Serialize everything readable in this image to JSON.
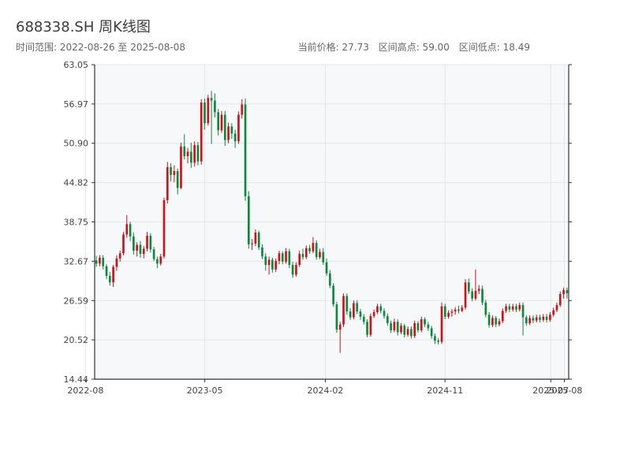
{
  "header": {
    "title": "688338.SH 周K线图",
    "range_text": "时间范围: 2022-08-26 至 2025-08-08",
    "current_price": "当前价格: 27.73",
    "range_high": "区间高点: 59.00",
    "range_low": "区间低点: 18.49"
  },
  "colors": {
    "up": "#d0111b",
    "down": "#0b8a3e",
    "plot_bg": "#f7f8fa",
    "grid": "#e3e6ea",
    "axis": "#333333",
    "tick_text": "#444444"
  },
  "chart_data": {
    "type": "candlestick",
    "ylim": [
      14.44,
      63.05
    ],
    "y_ticks": [
      "63.05",
      "56.97",
      "50.90",
      "44.82",
      "38.75",
      "32.67",
      "26.59",
      "20.52",
      "14.44"
    ],
    "x_start": "2022-08-22",
    "x_end": "2025-08-11",
    "x_ticks": [
      {
        "label": "2022-08",
        "date": "2022-08-01"
      },
      {
        "label": "2023-05",
        "date": "2023-05-01"
      },
      {
        "label": "2024-02",
        "date": "2024-02-01"
      },
      {
        "label": "2024-11",
        "date": "2024-11-01"
      },
      {
        "label": "2025-07",
        "date": "2025-07-01"
      },
      {
        "label": "2025-08",
        "date": "2025-08-01"
      }
    ],
    "grid": true,
    "candles_ohlc": [
      [
        32.8,
        33.5,
        31.8,
        32.3
      ],
      [
        32.3,
        33.6,
        31.9,
        33.2
      ],
      [
        33.2,
        33.6,
        31.4,
        31.9
      ],
      [
        31.9,
        32.2,
        29.9,
        30.4
      ],
      [
        30.4,
        31.0,
        28.9,
        29.4
      ],
      [
        29.4,
        32.1,
        28.7,
        31.8
      ],
      [
        31.8,
        33.6,
        31.2,
        33.1
      ],
      [
        33.1,
        34.3,
        32.6,
        33.9
      ],
      [
        33.9,
        37.2,
        33.6,
        36.8
      ],
      [
        36.8,
        39.8,
        36.3,
        38.4
      ],
      [
        38.4,
        38.8,
        35.8,
        36.5
      ],
      [
        36.5,
        37.1,
        33.7,
        34.3
      ],
      [
        34.3,
        35.6,
        33.4,
        35.2
      ],
      [
        35.2,
        35.8,
        33.2,
        33.8
      ],
      [
        33.8,
        35.0,
        33.1,
        34.6
      ],
      [
        34.6,
        37.2,
        34.2,
        36.6
      ],
      [
        36.6,
        37.0,
        34.0,
        34.5
      ],
      [
        34.5,
        34.9,
        32.7,
        33.0
      ],
      [
        33.0,
        33.4,
        31.6,
        32.3
      ],
      [
        32.3,
        33.8,
        32.0,
        33.4
      ],
      [
        33.4,
        42.5,
        33.1,
        42.1
      ],
      [
        42.1,
        48.0,
        41.6,
        47.2
      ],
      [
        47.2,
        47.8,
        45.0,
        46.0
      ],
      [
        46.0,
        47.5,
        44.9,
        46.6
      ],
      [
        46.6,
        47.0,
        43.0,
        44.0
      ],
      [
        44.0,
        51.0,
        43.8,
        50.4
      ],
      [
        50.4,
        52.3,
        48.4,
        48.9
      ],
      [
        48.9,
        50.2,
        47.8,
        49.6
      ],
      [
        49.6,
        51.0,
        47.1,
        47.9
      ],
      [
        47.9,
        51.2,
        47.3,
        50.6
      ],
      [
        50.6,
        51.1,
        47.5,
        48.1
      ],
      [
        48.1,
        57.7,
        47.6,
        57.2
      ],
      [
        57.2,
        57.8,
        53.0,
        54.0
      ],
      [
        54.0,
        58.4,
        53.6,
        57.9
      ],
      [
        57.9,
        59.0,
        50.8,
        57.5
      ],
      [
        57.5,
        58.6,
        54.9,
        55.7
      ],
      [
        55.7,
        56.2,
        52.1,
        52.9
      ],
      [
        52.9,
        55.9,
        52.5,
        55.3
      ],
      [
        55.3,
        55.9,
        50.5,
        51.4
      ],
      [
        51.4,
        54.1,
        50.9,
        53.5
      ],
      [
        53.5,
        54.0,
        51.6,
        52.4
      ],
      [
        52.4,
        53.0,
        50.2,
        51.2
      ],
      [
        51.2,
        55.8,
        50.8,
        55.3
      ],
      [
        55.3,
        57.7,
        54.7,
        56.9
      ],
      [
        56.9,
        57.8,
        42.0,
        42.7
      ],
      [
        42.7,
        43.5,
        34.6,
        35.3
      ],
      [
        35.3,
        36.1,
        34.4,
        35.4
      ],
      [
        35.4,
        37.6,
        35.0,
        37.1
      ],
      [
        37.1,
        37.4,
        34.4,
        34.8
      ],
      [
        34.8,
        35.3,
        33.0,
        33.4
      ],
      [
        33.4,
        33.9,
        31.2,
        32.1
      ],
      [
        32.1,
        33.4,
        30.6,
        32.9
      ],
      [
        32.9,
        33.2,
        30.9,
        31.4
      ],
      [
        31.4,
        33.1,
        31.0,
        32.7
      ],
      [
        32.7,
        34.3,
        32.2,
        33.9
      ],
      [
        33.9,
        34.2,
        32.2,
        32.6
      ],
      [
        32.6,
        34.7,
        32.3,
        34.2
      ],
      [
        34.2,
        34.6,
        31.6,
        32.1
      ],
      [
        32.1,
        32.6,
        30.1,
        30.6
      ],
      [
        30.6,
        32.5,
        30.3,
        32.1
      ],
      [
        32.1,
        34.3,
        31.8,
        33.8
      ],
      [
        33.8,
        34.6,
        32.9,
        33.3
      ],
      [
        33.3,
        35.1,
        33.0,
        34.7
      ],
      [
        34.7,
        35.2,
        33.8,
        34.2
      ],
      [
        34.2,
        36.4,
        33.9,
        35.5
      ],
      [
        35.5,
        35.9,
        32.9,
        33.3
      ],
      [
        33.3,
        34.6,
        33.0,
        34.1
      ],
      [
        34.1,
        34.7,
        32.1,
        32.5
      ],
      [
        32.5,
        33.1,
        30.4,
        30.8
      ],
      [
        30.8,
        31.3,
        28.5,
        28.9
      ],
      [
        28.9,
        29.3,
        25.6,
        26.0
      ],
      [
        26.0,
        26.4,
        21.6,
        22.1
      ],
      [
        22.1,
        23.3,
        18.5,
        22.9
      ],
      [
        22.9,
        27.7,
        22.5,
        27.3
      ],
      [
        27.3,
        27.7,
        24.4,
        24.9
      ],
      [
        24.9,
        25.4,
        23.6,
        24.0
      ],
      [
        24.0,
        26.6,
        23.7,
        26.2
      ],
      [
        26.2,
        26.6,
        24.5,
        24.9
      ],
      [
        24.9,
        25.3,
        23.6,
        24.1
      ],
      [
        24.1,
        24.5,
        22.9,
        23.3
      ],
      [
        23.3,
        23.7,
        20.9,
        21.3
      ],
      [
        21.3,
        24.6,
        21.0,
        24.2
      ],
      [
        24.2,
        25.2,
        23.9,
        24.8
      ],
      [
        24.8,
        26.1,
        24.5,
        25.7
      ],
      [
        25.7,
        26.1,
        24.6,
        25.0
      ],
      [
        25.0,
        25.4,
        23.8,
        24.2
      ],
      [
        24.2,
        24.6,
        22.7,
        23.1
      ],
      [
        23.1,
        23.5,
        21.6,
        22.0
      ],
      [
        22.0,
        23.8,
        21.7,
        23.3
      ],
      [
        23.3,
        23.7,
        21.2,
        21.7
      ],
      [
        21.7,
        23.1,
        21.4,
        22.7
      ],
      [
        22.7,
        23.0,
        20.9,
        21.3
      ],
      [
        21.3,
        22.6,
        21.0,
        22.2
      ],
      [
        22.2,
        22.6,
        20.7,
        21.1
      ],
      [
        21.1,
        23.5,
        20.8,
        23.1
      ],
      [
        23.1,
        23.4,
        21.6,
        22.0
      ],
      [
        22.0,
        24.1,
        21.7,
        23.7
      ],
      [
        23.7,
        24.0,
        22.5,
        22.9
      ],
      [
        22.9,
        23.3,
        21.9,
        22.3
      ],
      [
        22.3,
        22.7,
        20.7,
        21.1
      ],
      [
        21.1,
        21.5,
        19.9,
        20.4
      ],
      [
        20.4,
        20.8,
        19.8,
        20.2
      ],
      [
        20.2,
        26.3,
        19.9,
        25.7
      ],
      [
        25.7,
        26.1,
        23.7,
        24.1
      ],
      [
        24.1,
        25.1,
        23.8,
        24.7
      ],
      [
        24.7,
        25.3,
        24.1,
        24.9
      ],
      [
        24.9,
        25.6,
        24.4,
        25.2
      ],
      [
        25.2,
        25.8,
        24.6,
        25.0
      ],
      [
        25.0,
        25.9,
        24.8,
        25.5
      ],
      [
        25.5,
        29.9,
        25.2,
        29.4
      ],
      [
        29.4,
        30.0,
        27.6,
        28.0
      ],
      [
        28.0,
        28.5,
        26.5,
        26.9
      ],
      [
        26.9,
        31.4,
        26.6,
        28.1
      ],
      [
        28.1,
        29.0,
        27.6,
        28.4
      ],
      [
        28.4,
        28.9,
        25.9,
        26.3
      ],
      [
        26.3,
        26.7,
        24.0,
        24.4
      ],
      [
        24.4,
        24.8,
        22.4,
        22.8
      ],
      [
        22.8,
        24.3,
        22.5,
        23.9
      ],
      [
        23.9,
        24.2,
        22.5,
        22.9
      ],
      [
        22.9,
        23.8,
        22.6,
        23.4
      ],
      [
        23.4,
        25.4,
        23.1,
        25.0
      ],
      [
        25.0,
        26.1,
        24.7,
        25.7
      ],
      [
        25.7,
        26.1,
        24.8,
        25.2
      ],
      [
        25.2,
        26.1,
        24.9,
        25.7
      ],
      [
        25.7,
        26.1,
        24.8,
        25.2
      ],
      [
        25.2,
        26.3,
        24.9,
        25.9
      ],
      [
        25.9,
        26.3,
        21.2,
        24.0
      ],
      [
        24.0,
        24.3,
        22.7,
        23.1
      ],
      [
        23.1,
        24.3,
        22.8,
        23.9
      ],
      [
        23.9,
        24.3,
        23.1,
        23.5
      ],
      [
        23.5,
        24.4,
        23.2,
        24.0
      ],
      [
        24.0,
        24.4,
        23.2,
        23.6
      ],
      [
        23.6,
        24.5,
        23.3,
        24.1
      ],
      [
        24.1,
        24.5,
        23.2,
        23.6
      ],
      [
        23.6,
        24.8,
        23.3,
        24.4
      ],
      [
        24.4,
        25.5,
        24.1,
        25.1
      ],
      [
        25.1,
        26.3,
        24.8,
        25.9
      ],
      [
        25.9,
        28.0,
        25.6,
        27.6
      ],
      [
        27.6,
        28.6,
        26.9,
        28.2
      ],
      [
        28.2,
        28.6,
        26.9,
        27.73
      ]
    ]
  }
}
